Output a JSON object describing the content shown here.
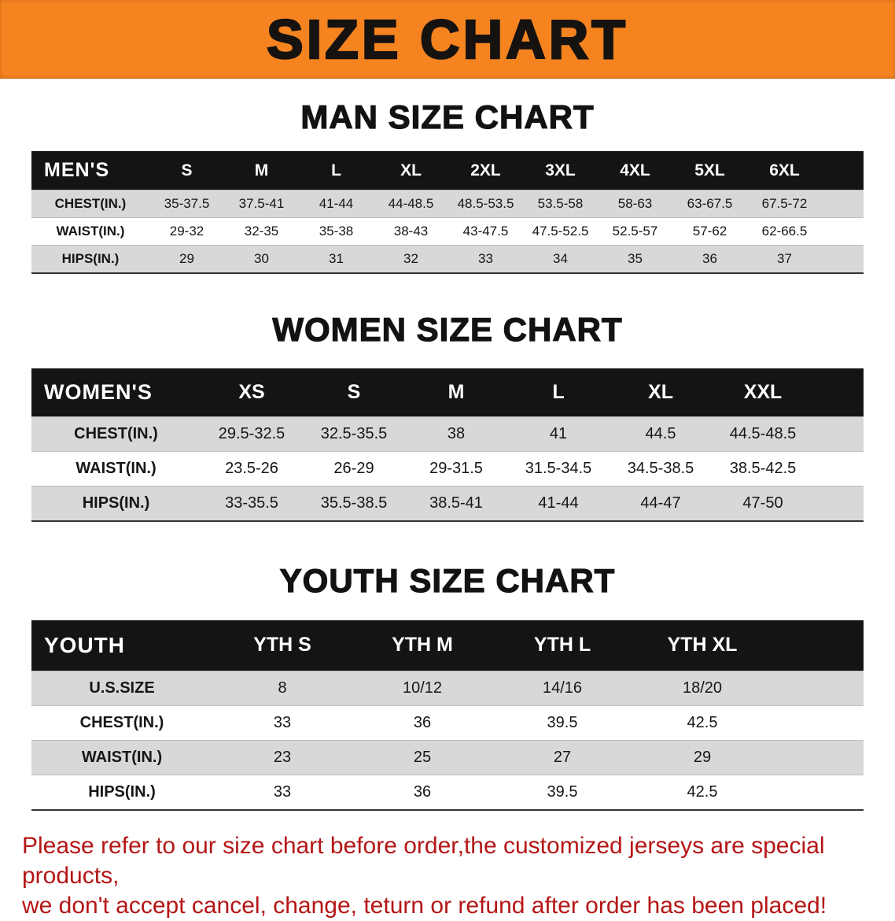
{
  "banner": {
    "title": "SIZE CHART"
  },
  "men": {
    "heading": "MAN SIZE CHART",
    "header": [
      "MEN'S",
      "S",
      "M",
      "L",
      "XL",
      "2XL",
      "3XL",
      "4XL",
      "5XL",
      "6XL"
    ],
    "rows": [
      {
        "label": "CHEST(IN.)",
        "values": [
          "35-37.5",
          "37.5-41",
          "41-44",
          "44-48.5",
          "48.5-53.5",
          "53.5-58",
          "58-63",
          "63-67.5",
          "67.5-72"
        ]
      },
      {
        "label": "WAIST(IN.)",
        "values": [
          "29-32",
          "32-35",
          "35-38",
          "38-43",
          "43-47.5",
          "47.5-52.5",
          "52.5-57",
          "57-62",
          "62-66.5"
        ]
      },
      {
        "label": "HIPS(IN.)",
        "values": [
          "29",
          "30",
          "31",
          "32",
          "33",
          "34",
          "35",
          "36",
          "37"
        ]
      }
    ]
  },
  "women": {
    "heading": "WOMEN SIZE CHART",
    "header": [
      "WOMEN'S",
      "XS",
      "S",
      "M",
      "L",
      "XL",
      "XXL"
    ],
    "rows": [
      {
        "label": "CHEST(IN.)",
        "values": [
          "29.5-32.5",
          "32.5-35.5",
          "38",
          "41",
          "44.5",
          "44.5-48.5"
        ]
      },
      {
        "label": "WAIST(IN.)",
        "values": [
          "23.5-26",
          "26-29",
          "29-31.5",
          "31.5-34.5",
          "34.5-38.5",
          "38.5-42.5"
        ]
      },
      {
        "label": "HIPS(IN.)",
        "values": [
          "33-35.5",
          "35.5-38.5",
          "38.5-41",
          "41-44",
          "44-47",
          "47-50"
        ]
      }
    ]
  },
  "youth": {
    "heading": "YOUTH SIZE CHART",
    "header": [
      "YOUTH",
      "YTH S",
      "YTH M",
      "YTH L",
      "YTH XL"
    ],
    "rows": [
      {
        "label": "U.S.SIZE",
        "values": [
          "8",
          "10/12",
          "14/16",
          "18/20"
        ]
      },
      {
        "label": "CHEST(IN.)",
        "values": [
          "33",
          "36",
          "39.5",
          "42.5"
        ]
      },
      {
        "label": "WAIST(IN.)",
        "values": [
          "23",
          "25",
          "27",
          "29"
        ]
      },
      {
        "label": "HIPS(IN.)",
        "values": [
          "33",
          "36",
          "39.5",
          "42.5"
        ]
      }
    ]
  },
  "disclaimer": {
    "line1": "Please refer to our size chart before order,the customized jerseys are special products,",
    "line2": "we don't accept cancel, change, teturn or refund after order has been placed!"
  },
  "colors": {
    "banner_bg": "#f5831f",
    "header_bg": "#141414",
    "row_alt": "#d8d8d8",
    "disclaimer_red": "#b51616"
  }
}
